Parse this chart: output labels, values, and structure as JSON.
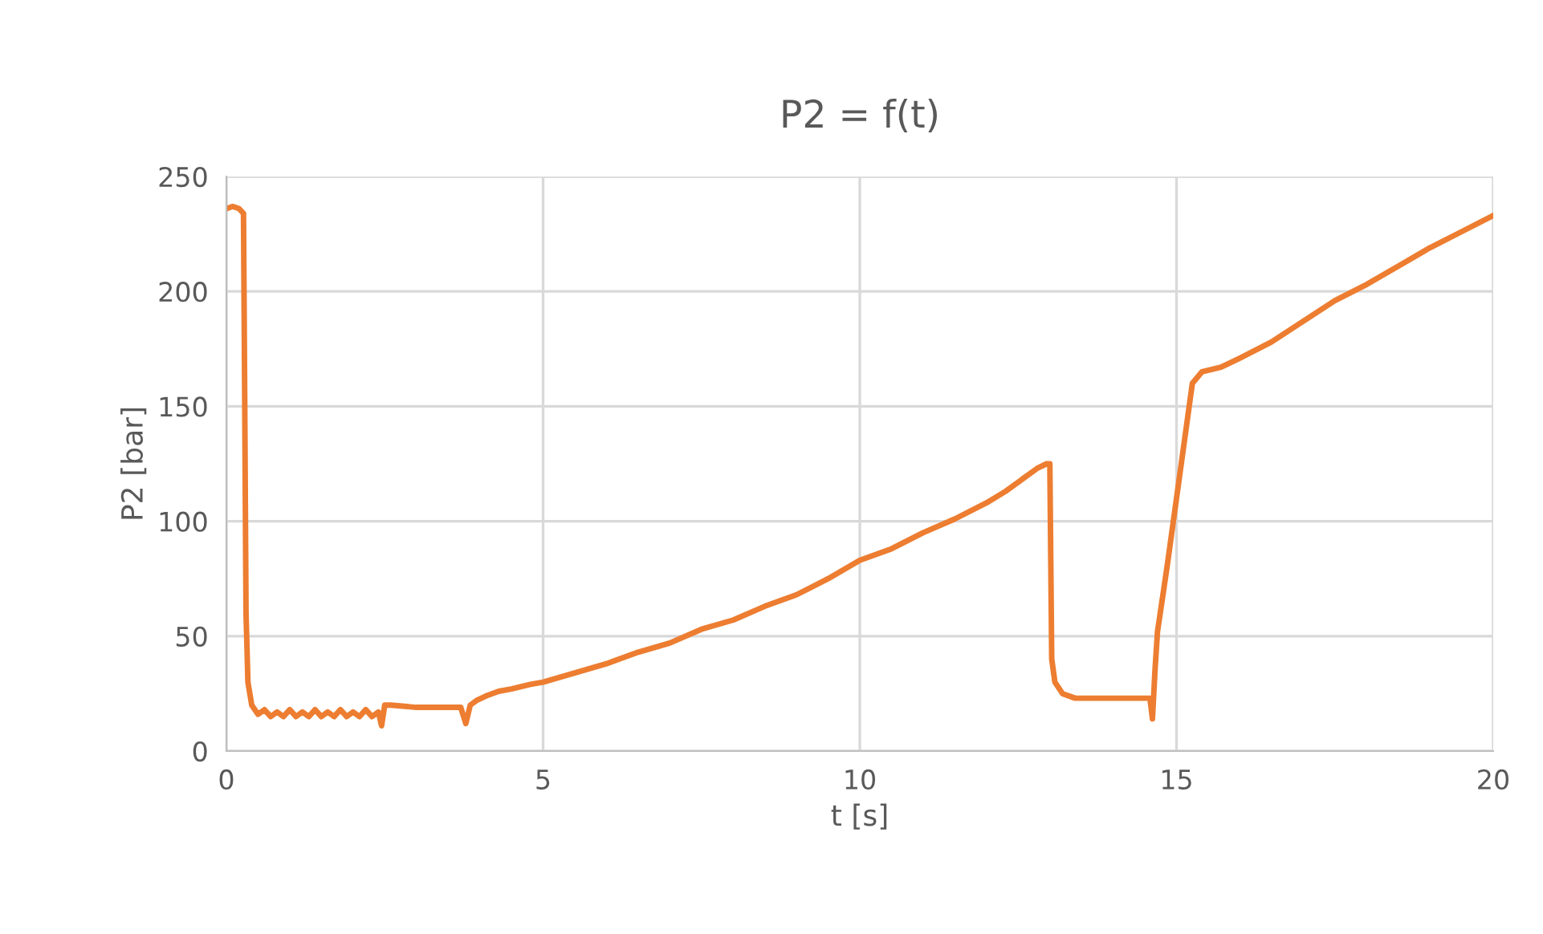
{
  "chart_data": {
    "type": "line",
    "title": "P2 = f(t)",
    "xlabel": "t [s]",
    "ylabel": "P2 [bar]",
    "xlim": [
      0,
      20
    ],
    "xticks": [
      0,
      5,
      10,
      15,
      20
    ],
    "ylim": [
      0,
      250
    ],
    "yticks": [
      0,
      50,
      100,
      150,
      200,
      250
    ],
    "grid": true,
    "legend": false,
    "marker": "none",
    "line_style": "solid",
    "series": [
      {
        "color": "#ed7d31",
        "x": [
          0,
          0.1,
          0.2,
          0.27,
          0.29,
          0.31,
          0.34,
          0.4,
          0.5,
          0.6,
          0.7,
          0.8,
          0.9,
          1.0,
          1.1,
          1.2,
          1.3,
          1.4,
          1.5,
          1.6,
          1.7,
          1.8,
          1.9,
          2.0,
          2.1,
          2.2,
          2.3,
          2.4,
          2.45,
          2.5,
          2.6,
          3.0,
          3.4,
          3.7,
          3.78,
          3.85,
          3.95,
          4.1,
          4.3,
          4.5,
          4.8,
          5.0,
          5.5,
          6.0,
          6.5,
          7.0,
          7.5,
          8.0,
          8.5,
          9.0,
          9.5,
          10.0,
          10.5,
          11.0,
          11.5,
          12.0,
          12.3,
          12.6,
          12.8,
          12.95,
          13.0,
          13.03,
          13.08,
          13.2,
          13.4,
          13.7,
          14.0,
          14.3,
          14.58,
          14.62,
          14.66,
          14.7,
          14.85,
          15.0,
          15.15,
          15.25,
          15.4,
          15.7,
          16.0,
          16.5,
          17.0,
          17.5,
          18.0,
          18.5,
          19.0,
          19.5,
          20.0
        ],
        "values": [
          236,
          237,
          236,
          234,
          150,
          60,
          30,
          20,
          16,
          18,
          15,
          17,
          15,
          18,
          15,
          17,
          15,
          18,
          15,
          17,
          15,
          18,
          15,
          17,
          15,
          18,
          15,
          17,
          11,
          20,
          20,
          19,
          19,
          19,
          12,
          20,
          22,
          24,
          26,
          27,
          29,
          30,
          34,
          38,
          43,
          47,
          53,
          57,
          63,
          68,
          75,
          83,
          88,
          95,
          101,
          108,
          113,
          119,
          123,
          125,
          125,
          40,
          30,
          25,
          23,
          23,
          23,
          23,
          23,
          14,
          35,
          52,
          80,
          110,
          140,
          160,
          165,
          167,
          171,
          178,
          187,
          196,
          203,
          211,
          219,
          226,
          233
        ]
      }
    ]
  }
}
